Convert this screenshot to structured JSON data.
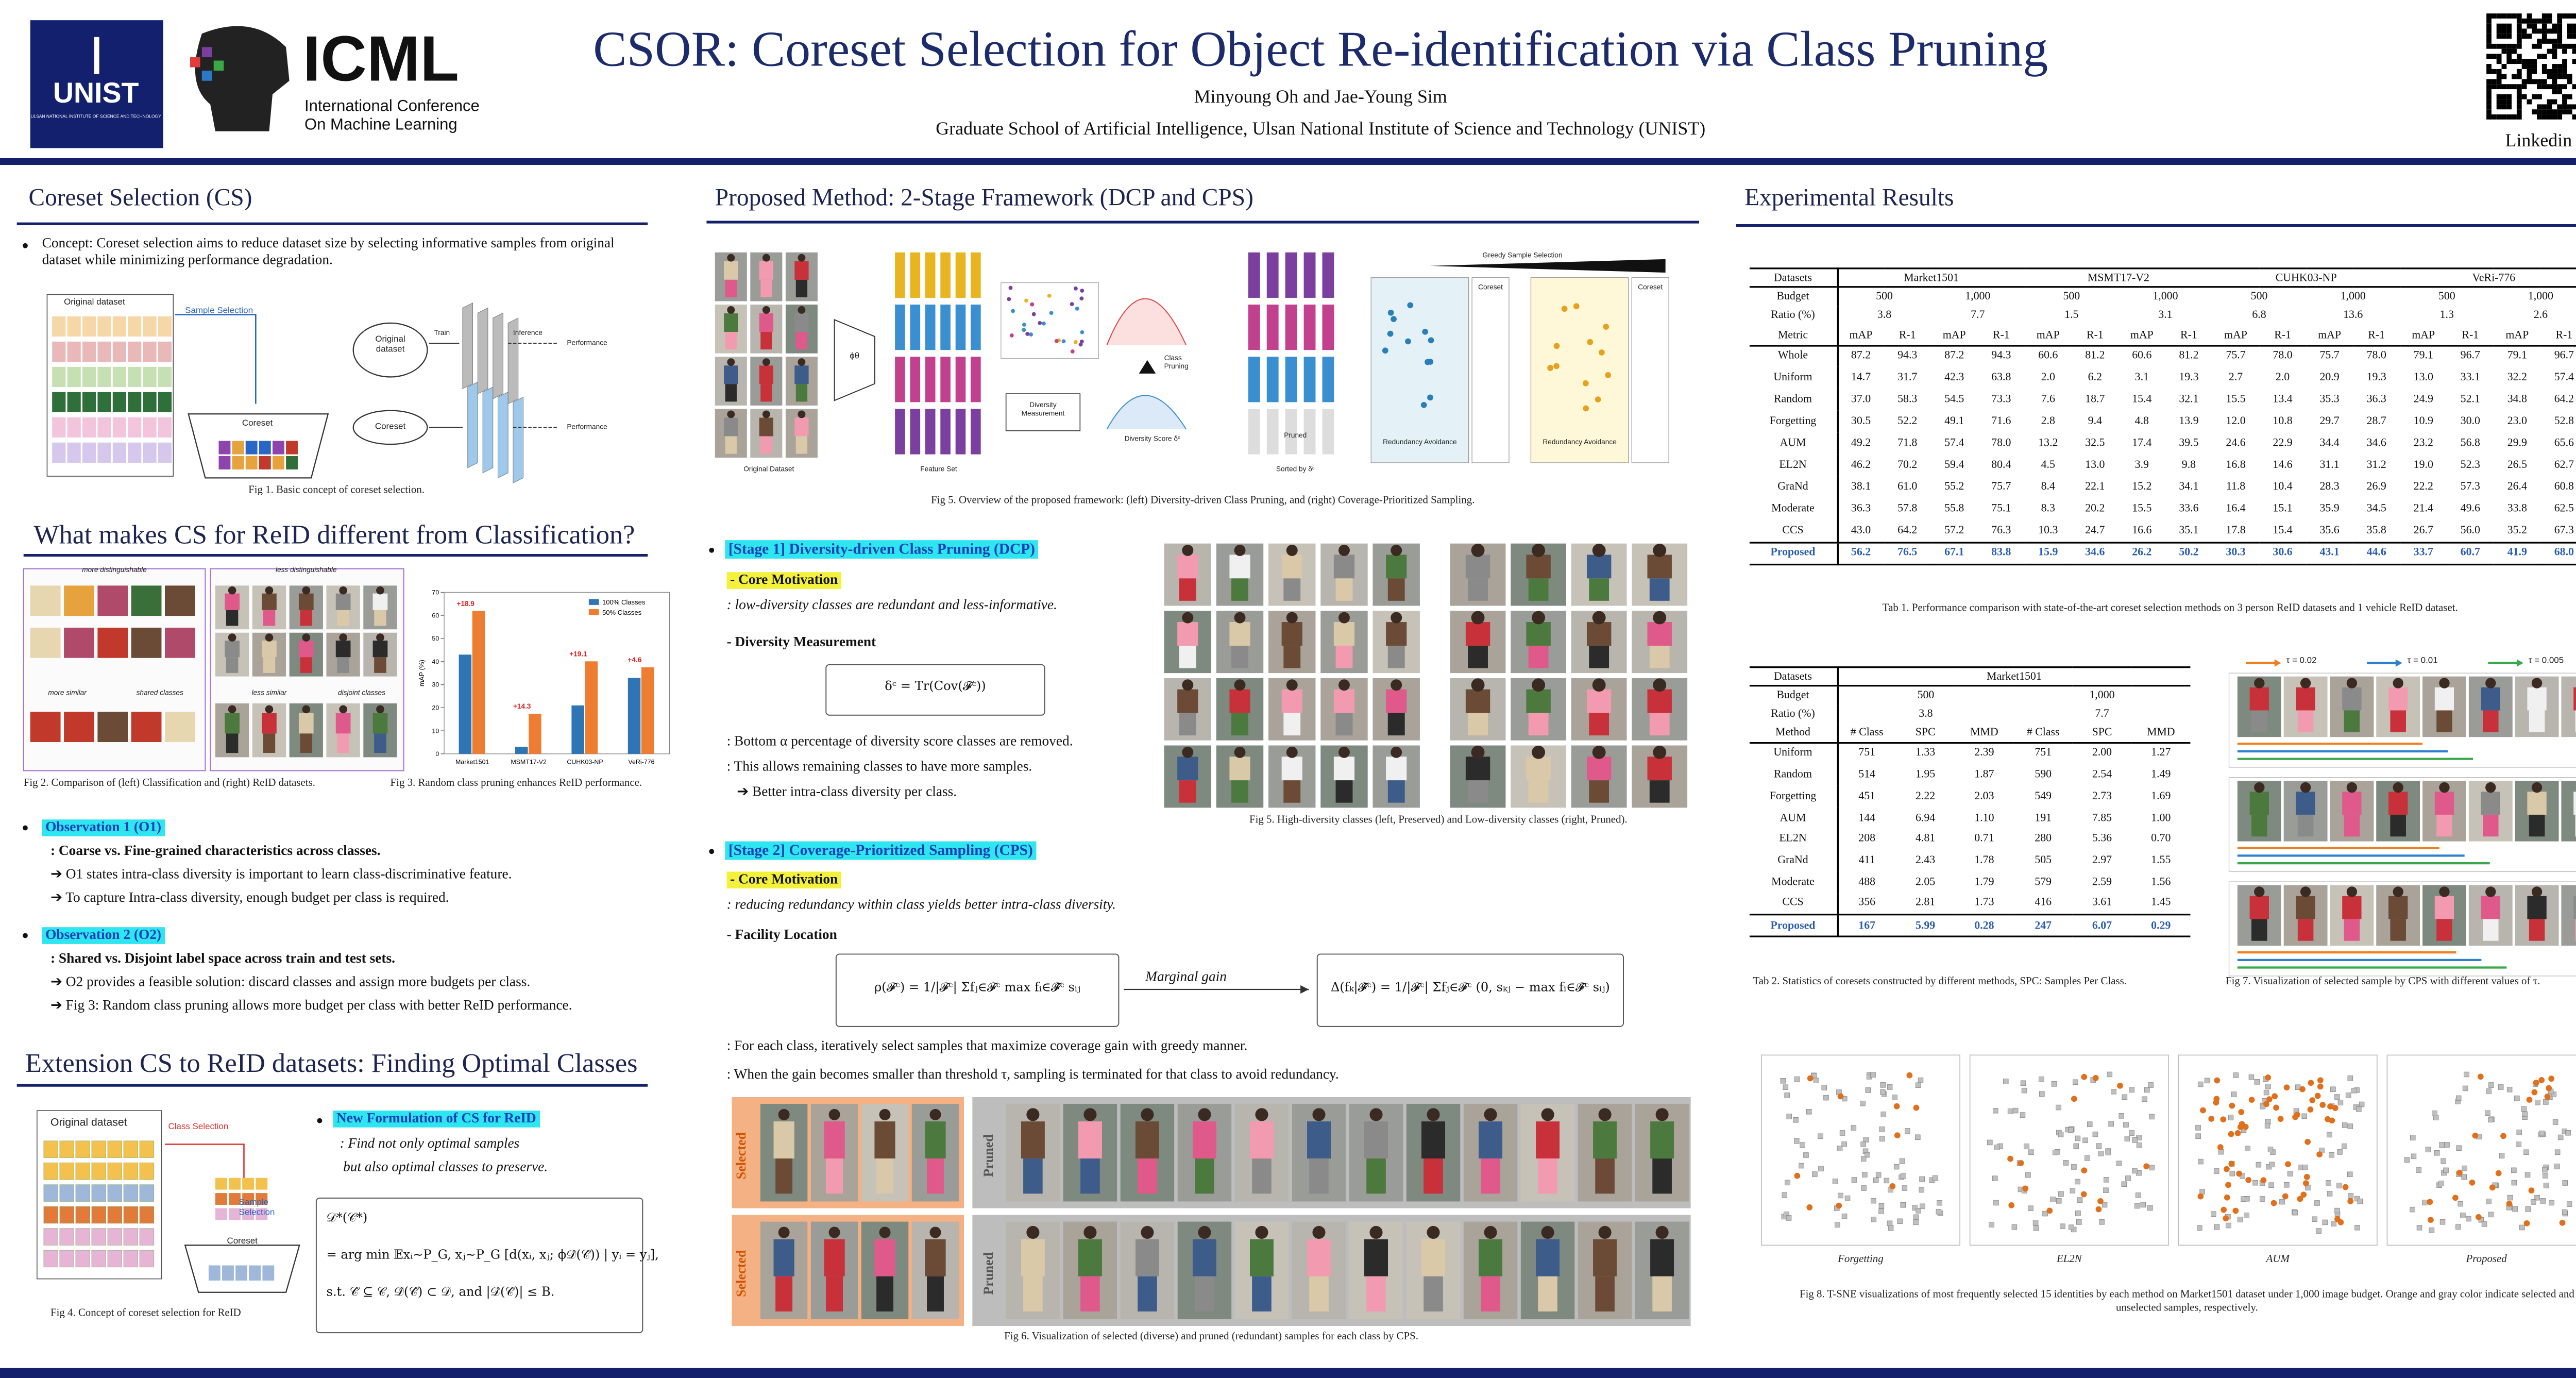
{
  "header": {
    "title": "CSOR: Coreset Selection for Object Re-identification via Class Pruning",
    "authors": "Minyoung Oh and Jae-Young Sim",
    "affiliation": "Graduate School of Artificial Intelligence, Ulsan National Institute of Science and Technology (UNIST)",
    "unist_logo": "UNIST",
    "unist_sub": "ULSAN NATIONAL INSTITUTE OF SCIENCE AND TECHNOLOGY",
    "icml_logo": "ICML",
    "icml_sub": [
      "International Conference",
      "On Machine Learning"
    ],
    "qr_label": "Linkedin"
  },
  "coreset_selection": {
    "title": "Coreset Selection (CS)",
    "concept": "Concept: Coreset selection aims to reduce dataset size by selecting informative samples from original dataset while minimizing performance degradation.",
    "fig1": {
      "original": "Original dataset",
      "sample_selection": "Sample Selection",
      "coreset": "Coreset",
      "original_db": "Original dataset",
      "coreset_db": "Coreset",
      "train": "Train",
      "inference": "Inference",
      "performance": [
        "Performance",
        "Performance"
      ],
      "caption": "Fig 1. Basic concept of coreset selection."
    }
  },
  "what_makes": {
    "title": "What makes CS for ReID different from Classification?",
    "fig2": {
      "more_distinguishable": "more distinguishable",
      "less_distinguishable": "less distinguishable",
      "more_similar": "more similar",
      "shared": "shared classes",
      "less_similar": "less similar",
      "disjoint": "disjoint classes",
      "caption": "Fig 2. Comparison of (left) Classification and (right) ReID datasets."
    },
    "fig3": {
      "type": "bar",
      "ylabel": "mAP (%)",
      "categories": [
        "Market1501",
        "MSMT17-V2",
        "CUHK03-NP",
        "VeRi-776"
      ],
      "series": [
        {
          "name": "100% Classes",
          "color": "#2e75b6",
          "values": [
            43.0,
            3.1,
            21.0,
            32.9
          ]
        },
        {
          "name": "50% Classes",
          "color": "#ed7d31",
          "values": [
            61.9,
            17.4,
            40.1,
            37.5
          ]
        }
      ],
      "annotations": [
        "+18.9",
        "+14.3",
        "+19.1",
        "+4.6"
      ],
      "ylim": [
        0,
        70
      ],
      "yticks": [
        0,
        10,
        20,
        30,
        40,
        50,
        60,
        70
      ],
      "caption": "Fig 3. Random class pruning enhances ReID performance."
    },
    "observation1": {
      "title": "Observation 1 (O1)",
      "lines": [
        ": Coarse vs. Fine-grained characteristics across classes.",
        "➔ O1 states intra-class diversity is important to learn class-discriminative feature.",
        "➔ To capture Intra-class diversity, enough budget per class is required."
      ]
    },
    "observation2": {
      "title": "Observation 2 (O2)",
      "lines": [
        ": Shared vs. Disjoint label space across train and test sets.",
        "➔ O2 provides a feasible solution: discard classes and assign more budgets per class.",
        "➔ Fig 3: Random class pruning allows more budget per class with better ReID performance."
      ]
    }
  },
  "extension": {
    "title": "Extension CS to ReID datasets: Finding Optimal Classes",
    "fig4": {
      "original": "Original dataset",
      "class_selection": "Class Selection",
      "sample_selection": "Sample Selection",
      "coreset": "Coreset",
      "caption": "Fig 4. Concept of coreset selection for ReID"
    },
    "formulation": {
      "title": "New Formulation of CS for ReID",
      "lines": [
        ": Find not only optimal samples",
        "but also optimal classes to preserve."
      ],
      "equation": [
        "𝒟*(𝒞*)",
        "= arg min 𝔼xᵢ∼P_G, xⱼ∼P_G [d(xᵢ, xⱼ; ϕ𝒟̂(𝒞̂)) | yᵢ = yⱼ],",
        "s.t.  𝒞̂ ⊆ 𝒞, 𝒟̂(𝒞̂) ⊂ 𝒟,  and |𝒟̂(𝒞̂)| ≤ B."
      ]
    }
  },
  "proposed": {
    "title": "Proposed Method: 2-Stage Framework (DCP and CPS)",
    "fig5": {
      "original_dataset": "Original Dataset",
      "phi": "ϕθ",
      "feature_set": "Feature Set",
      "diversity_measurement": "Diversity Measurement",
      "class_pruning": "Class Pruning",
      "diversity_score": "Diversity Score δᶜ",
      "sorted_by": "Sorted by δᶜ",
      "pruned": "Pruned",
      "greedy": "Greedy Sample Selection",
      "coreset": [
        "Coreset",
        "Coreset"
      ],
      "redundancy": [
        "Redundancy Avoidance",
        "Redundancy Avoidance"
      ],
      "caption": "Fig 5. Overview of the proposed framework: (left) Diversity-driven Class Pruning, and (right) Coverage-Prioritized Sampling."
    },
    "stage1": {
      "title": "[Stage 1] Diversity-driven Class Pruning (DCP)",
      "motivation": "- Core Motivation",
      "motivation_text": ": low-diversity classes are redundant and less-informative.",
      "measure": "- Diversity Measurement",
      "equation": "δᶜ = Tr(Cov(𝓕ᶜ))",
      "lines": [
        ": Bottom α percentage of diversity score classes are removed.",
        ": This allows remaining classes to have more samples.",
        "➔ Better intra-class diversity per class."
      ]
    },
    "fig5b": {
      "caption": "Fig 5. High-diversity classes (left, Preserved) and Low-diversity classes (right, Pruned)."
    },
    "stage2": {
      "title": "[Stage 2] Coverage-Prioritized Sampling (CPS)",
      "motivation": "- Core Motivation",
      "motivation_text": ": reducing redundancy within class yields better intra-class diversity.",
      "facility": "- Facility Location",
      "equation1": "ρ(𝓕ᶜ) = 1/|𝓕ᶜ| Σfⱼ∈𝓕ᶜ max fᵢ∈𝓕̂ᶜ sᵢⱼ",
      "marginal": "Marginal gain",
      "equation2": "Δ(fₖ|𝓕̂ᶜ) = 1/|𝓕ᶜ| Σfⱼ∈𝓕ᶜ (0, sₖⱼ − max fᵢ∈𝓕̂ᶜ sᵢⱼ)",
      "lines": [
        ": For each class, iteratively select samples that maximize coverage gain with greedy manner.",
        ": When the gain becomes smaller than threshold τ, sampling is terminated for that class to avoid redundancy."
      ]
    },
    "fig6": {
      "selected": [
        "Selected",
        "Selected"
      ],
      "pruned": [
        "Pruned",
        "Pruned"
      ],
      "caption": "Fig 6. Visualization of selected (diverse) and pruned (redundant) samples for each class by CPS."
    }
  },
  "results": {
    "title": "Experimental Results",
    "table1": {
      "header_labels": [
        "Datasets",
        "Budget",
        "Ratio (%)",
        "Metric"
      ],
      "datasets": [
        "Market1501",
        "MSMT17-V2",
        "CUHK03-NP",
        "VeRi-776"
      ],
      "budget": [
        "500",
        "1,000",
        "500",
        "1,000",
        "500",
        "1,000",
        "500",
        "1,000"
      ],
      "ratio": [
        "3.8",
        "7.7",
        "1.5",
        "3.1",
        "6.8",
        "13.6",
        "1.3",
        "2.6"
      ],
      "metric": [
        "mAP",
        "R-1",
        "mAP",
        "R-1",
        "mAP",
        "R-1",
        "mAP",
        "R-1",
        "mAP",
        "R-1",
        "mAP",
        "R-1",
        "mAP",
        "R-1",
        "mAP",
        "R-1"
      ],
      "rows": [
        [
          "Whole",
          "87.2",
          "94.3",
          "87.2",
          "94.3",
          "60.6",
          "81.2",
          "60.6",
          "81.2",
          "75.7",
          "78.0",
          "75.7",
          "78.0",
          "79.1",
          "96.7",
          "79.1",
          "96.7"
        ],
        [
          "Uniform",
          "14.7",
          "31.7",
          "42.3",
          "63.8",
          "2.0",
          "6.2",
          "3.1",
          "19.3",
          "2.7",
          "2.0",
          "20.9",
          "19.3",
          "13.0",
          "33.1",
          "32.2",
          "57.4"
        ],
        [
          "Random",
          "37.0",
          "58.3",
          "54.5",
          "73.3",
          "7.6",
          "18.7",
          "15.4",
          "32.1",
          "15.5",
          "13.4",
          "35.3",
          "36.3",
          "24.9",
          "52.1",
          "34.8",
          "64.2"
        ],
        [
          "Forgetting",
          "30.5",
          "52.2",
          "49.1",
          "71.6",
          "2.8",
          "9.4",
          "4.8",
          "13.9",
          "12.0",
          "10.8",
          "29.7",
          "28.7",
          "10.9",
          "30.0",
          "23.0",
          "52.8"
        ],
        [
          "AUM",
          "49.2",
          "71.8",
          "57.4",
          "78.0",
          "13.2",
          "32.5",
          "17.4",
          "39.5",
          "24.6",
          "22.9",
          "34.4",
          "34.6",
          "23.2",
          "56.8",
          "29.9",
          "65.6"
        ],
        [
          "EL2N",
          "46.2",
          "70.2",
          "59.4",
          "80.4",
          "4.5",
          "13.0",
          "3.9",
          "9.8",
          "16.8",
          "14.6",
          "31.1",
          "31.2",
          "19.0",
          "52.3",
          "26.5",
          "62.7"
        ],
        [
          "GraNd",
          "38.1",
          "61.0",
          "55.2",
          "75.7",
          "8.4",
          "22.1",
          "15.2",
          "34.1",
          "11.8",
          "10.4",
          "28.3",
          "26.9",
          "22.2",
          "57.3",
          "26.4",
          "60.8"
        ],
        [
          "Moderate",
          "36.3",
          "57.8",
          "55.8",
          "75.1",
          "8.3",
          "20.2",
          "15.5",
          "33.6",
          "16.4",
          "15.1",
          "35.9",
          "34.5",
          "21.4",
          "49.6",
          "33.8",
          "62.5"
        ],
        [
          "CCS",
          "43.0",
          "64.2",
          "57.2",
          "76.3",
          "10.3",
          "24.7",
          "16.6",
          "35.1",
          "17.8",
          "15.4",
          "35.6",
          "35.8",
          "26.7",
          "56.0",
          "35.2",
          "67.3"
        ],
        [
          "Proposed",
          "56.2",
          "76.5",
          "67.1",
          "83.8",
          "15.9",
          "34.6",
          "26.2",
          "50.2",
          "30.3",
          "30.6",
          "43.1",
          "44.6",
          "33.7",
          "60.7",
          "41.9",
          "68.0"
        ]
      ],
      "caption": "Tab 1. Performance comparison with state-of-the-art coreset selection methods on 3 person ReID datasets and 1 vehicle ReID dataset."
    },
    "table2": {
      "header_labels": [
        "Datasets",
        "Budget",
        "Ratio (%)",
        "Method"
      ],
      "datasets": [
        "Market1501"
      ],
      "budget": [
        "500",
        "1,000"
      ],
      "ratio": [
        "3.8",
        "7.7"
      ],
      "metric": [
        "# Class",
        "SPC",
        "MMD",
        "# Class",
        "SPC",
        "MMD"
      ],
      "rows": [
        [
          "Uniform",
          "751",
          "1.33",
          "2.39",
          "751",
          "2.00",
          "1.27"
        ],
        [
          "Random",
          "514",
          "1.95",
          "1.87",
          "590",
          "2.54",
          "1.49"
        ],
        [
          "Forgetting",
          "451",
          "2.22",
          "2.03",
          "549",
          "2.73",
          "1.69"
        ],
        [
          "AUM",
          "144",
          "6.94",
          "1.10",
          "191",
          "7.85",
          "1.00"
        ],
        [
          "EL2N",
          "208",
          "4.81",
          "0.71",
          "280",
          "5.36",
          "0.70"
        ],
        [
          "GraNd",
          "411",
          "2.43",
          "1.78",
          "505",
          "2.97",
          "1.55"
        ],
        [
          "Moderate",
          "488",
          "2.05",
          "1.79",
          "579",
          "2.59",
          "1.56"
        ],
        [
          "CCS",
          "356",
          "2.81",
          "1.73",
          "416",
          "3.61",
          "1.45"
        ],
        [
          "Proposed",
          "167",
          "5.99",
          "0.28",
          "247",
          "6.07",
          "0.29"
        ]
      ],
      "caption": "Tab 2. Statistics of coresets constructed by different methods, SPC: Samples Per Class."
    },
    "fig7": {
      "legend": [
        {
          "label": "τ = 0.02",
          "color": "#f07f1f"
        },
        {
          "label": "τ = 0.01",
          "color": "#2d7fd0"
        },
        {
          "label": "τ = 0.005",
          "color": "#3aa84a"
        }
      ],
      "caption": "Fig 7. Visualization of selected sample by CPS with different values of τ."
    },
    "fig8": {
      "panels": [
        "Forgetting",
        "EL2N",
        "AUM",
        "Proposed"
      ],
      "caption": "Fig 8. T-SNE visualizations of most frequently selected 15 identities by each method on Market1501 dataset under 1,000 image budget. Orange and gray color indicate selected and unselected samples, respectively."
    }
  }
}
